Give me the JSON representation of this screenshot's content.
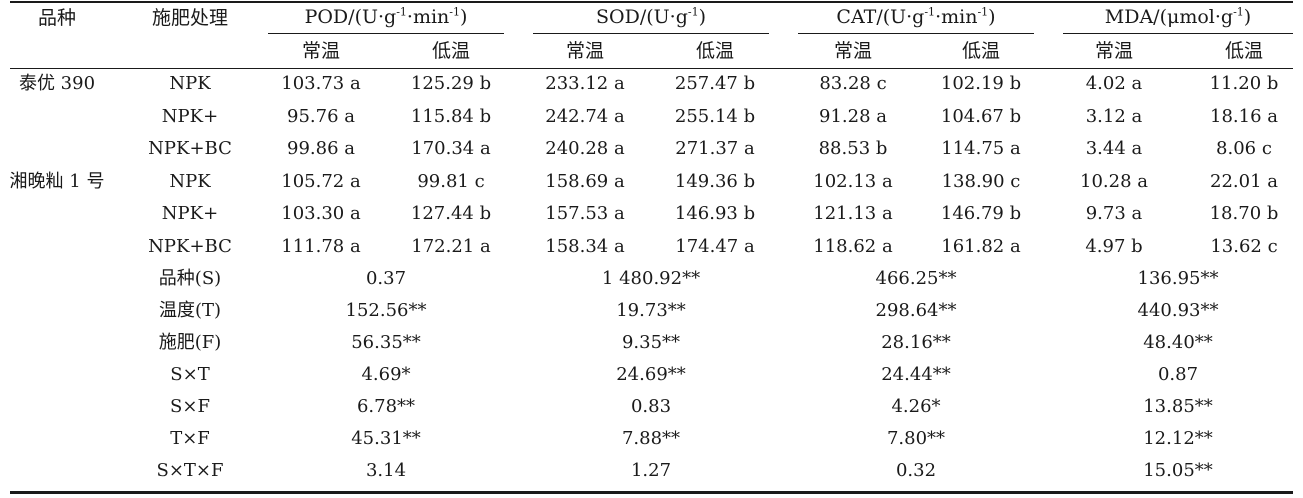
{
  "headers": {
    "variety": "品种",
    "treatment": "施肥处理",
    "groups": [
      {
        "label": "POD/(U·g⁻¹·min⁻¹)",
        "unit_parts": [
          "POD/(U·g",
          "-1",
          "·min",
          "-1",
          ")"
        ]
      },
      {
        "label": "SOD/(U·g⁻¹)",
        "unit_parts": [
          "SOD/(U·g",
          "-1",
          ")"
        ]
      },
      {
        "label": "CAT/(U·g⁻¹·min⁻¹)",
        "unit_parts": [
          "CAT/(U·g",
          "-1",
          "·min",
          "-1",
          ")"
        ]
      },
      {
        "label": "MDA/(μmol·g⁻¹)",
        "unit_parts": [
          "MDA/(μmol·g",
          "-1",
          ")"
        ]
      }
    ],
    "normal_temp": "常温",
    "low_temp": "低温"
  },
  "data_rows": [
    {
      "variety": "泰优 390",
      "treatment": "NPK",
      "values": [
        "103.73 a",
        "125.29 b",
        "233.12 a",
        "257.47 b",
        "83.28 c",
        "102.19 b",
        "4.02 a",
        "11.20 b"
      ]
    },
    {
      "variety": "",
      "treatment": "NPK+",
      "values": [
        "95.76 a",
        "115.84 b",
        "242.74 a",
        "255.14 b",
        "91.28 a",
        "104.67 b",
        "3.12 a",
        "18.16 a"
      ]
    },
    {
      "variety": "",
      "treatment": "NPK+BC",
      "values": [
        "99.86 a",
        "170.34 a",
        "240.28 a",
        "271.37 a",
        "88.53 b",
        "114.75 a",
        "3.44 a",
        "8.06 c"
      ]
    },
    {
      "variety": "湘晚籼 1 号",
      "treatment": "NPK",
      "values": [
        "105.72 a",
        "99.81 c",
        "158.69 a",
        "149.36 b",
        "102.13 a",
        "138.90 c",
        "10.28 a",
        "22.01 a"
      ]
    },
    {
      "variety": "",
      "treatment": "NPK+",
      "values": [
        "103.30 a",
        "127.44 b",
        "157.53 a",
        "146.93 b",
        "121.13 a",
        "146.79 b",
        "9.73 a",
        "18.70 b"
      ]
    },
    {
      "variety": "",
      "treatment": "NPK+BC",
      "values": [
        "111.78 a",
        "172.21 a",
        "158.34 a",
        "174.47 a",
        "118.62 a",
        "161.82 a",
        "4.97 b",
        "13.62 c"
      ]
    }
  ],
  "anova_rows": [
    {
      "factor": "品种(S)",
      "values": [
        "0.37",
        "1 480.92**",
        "466.25**",
        "136.95**"
      ]
    },
    {
      "factor": "温度(T)",
      "values": [
        "152.56**",
        "19.73**",
        "298.64**",
        "440.93**"
      ]
    },
    {
      "factor": "施肥(F)",
      "values": [
        "56.35**",
        "9.35**",
        "28.16**",
        "48.40**"
      ]
    },
    {
      "factor": "S×T",
      "values": [
        "4.69*",
        "24.69**",
        "24.44**",
        "0.87"
      ]
    },
    {
      "factor": "S×F",
      "values": [
        "6.78**",
        "0.83",
        "4.26*",
        "13.85**"
      ]
    },
    {
      "factor": "T×F",
      "values": [
        "45.31**",
        "7.88**",
        "7.80**",
        "12.12**"
      ]
    },
    {
      "factor": "S×T×F",
      "values": [
        "3.14",
        "1.27",
        "0.32",
        "15.05**"
      ]
    }
  ]
}
